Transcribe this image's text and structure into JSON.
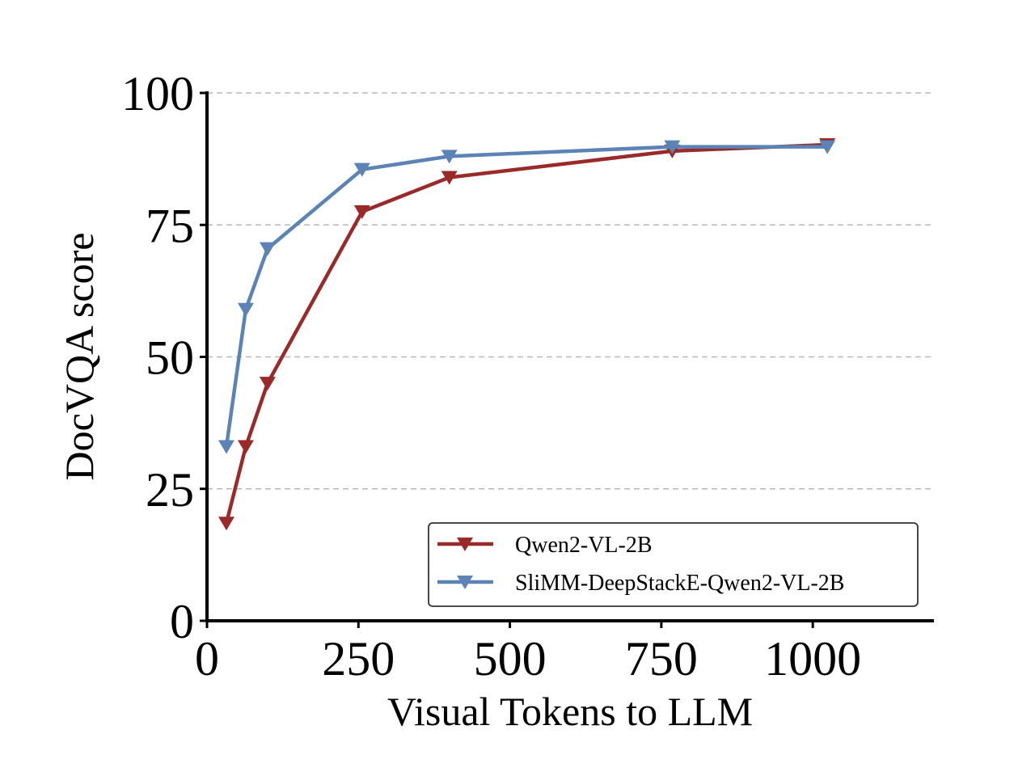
{
  "chart_data": {
    "type": "line",
    "xlabel": "Visual Tokens to LLM",
    "ylabel": "DocVQA score",
    "xlim": [
      0,
      1200
    ],
    "ylim": [
      0,
      100
    ],
    "xticks": [
      0,
      250,
      500,
      750,
      1000
    ],
    "yticks": [
      0,
      25,
      50,
      75,
      100
    ],
    "grid": "horizontal dashed",
    "legend_position": "lower-right",
    "series": [
      {
        "name": "Qwen2-VL-2B",
        "color": "#9a2a2a",
        "marker": "triangle-down",
        "points": [
          [
            32,
            18.5
          ],
          [
            64,
            33
          ],
          [
            100,
            45
          ],
          [
            256,
            77.5
          ],
          [
            400,
            84
          ],
          [
            768,
            89
          ],
          [
            1024,
            90.2
          ]
        ]
      },
      {
        "name": "SliMM-DeepStackE-Qwen2-VL-2B",
        "color": "#5b83b5",
        "marker": "triangle-down",
        "points": [
          [
            32,
            33
          ],
          [
            64,
            59
          ],
          [
            100,
            70.5
          ],
          [
            256,
            85.5
          ],
          [
            400,
            88
          ],
          [
            768,
            89.8
          ],
          [
            1024,
            89.8
          ]
        ]
      }
    ]
  }
}
